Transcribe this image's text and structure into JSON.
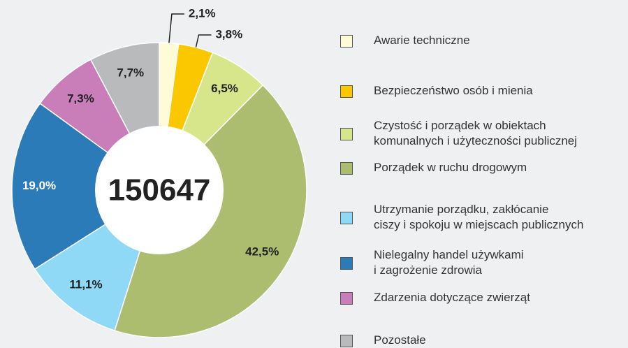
{
  "chart_data": {
    "type": "donut",
    "categories": [
      "Awarie techniczne",
      "Bezpieczeństwo osób i mienia",
      "Czystość i porządek w obiektach\nkomunalnych i użyteczności publicznej",
      "Porządek w ruchu drogowym",
      "Utrzymanie porządku, zakłócanie\nciszy i spokoju w miejscach publicznych",
      "Nielegalny handel używkami\ni zagrożenie zdrowia",
      "Zdarzenia dotyczące zwierząt",
      "Pozostałe"
    ],
    "values": [
      2.1,
      3.8,
      6.5,
      42.5,
      11.1,
      19.0,
      7.3,
      7.7
    ],
    "value_labels": [
      "2,1%",
      "3,8%",
      "6,5%",
      "42,5%",
      "11,1%",
      "19,0%",
      "7,3%",
      "7,7%"
    ],
    "colors": [
      "#fffbd6",
      "#fbc800",
      "#d7e68b",
      "#adbd70",
      "#8fd8f6",
      "#2b7bb9",
      "#c97eb9",
      "#b9babb"
    ],
    "center_label": "150647"
  }
}
